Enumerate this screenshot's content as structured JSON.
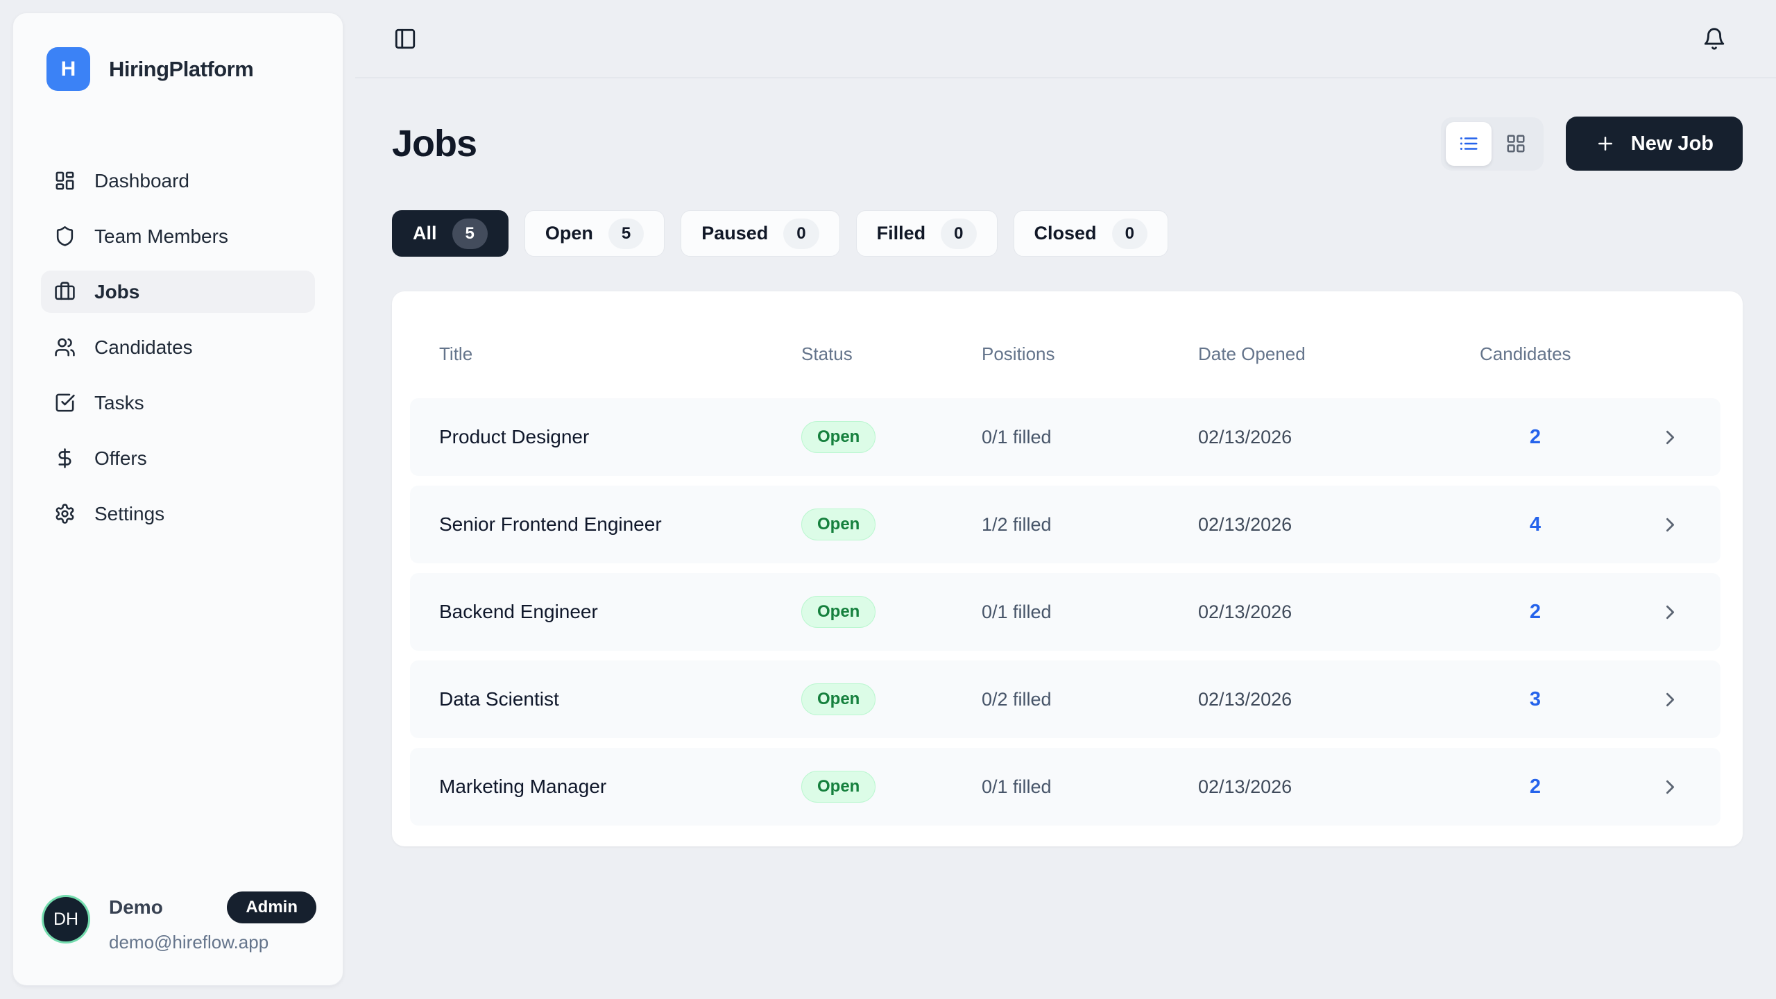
{
  "brand": {
    "initial": "H",
    "name": "HiringPlatform"
  },
  "sidebar": {
    "items": [
      {
        "label": "Dashboard",
        "icon": "dashboard-icon",
        "active": false
      },
      {
        "label": "Team Members",
        "icon": "shield-icon",
        "active": false
      },
      {
        "label": "Jobs",
        "icon": "briefcase-icon",
        "active": true
      },
      {
        "label": "Candidates",
        "icon": "users-icon",
        "active": false
      },
      {
        "label": "Tasks",
        "icon": "check-square-icon",
        "active": false
      },
      {
        "label": "Offers",
        "icon": "dollar-icon",
        "active": false
      },
      {
        "label": "Settings",
        "icon": "gear-icon",
        "active": false
      }
    ],
    "user": {
      "initials": "DH",
      "name": "Demo",
      "role_badge": "Admin",
      "email": "demo@hireflow.app"
    }
  },
  "page": {
    "title": "Jobs",
    "new_job_label": "New Job",
    "active_view": "list"
  },
  "filters": [
    {
      "label": "All",
      "count": "5",
      "active": true
    },
    {
      "label": "Open",
      "count": "5",
      "active": false
    },
    {
      "label": "Paused",
      "count": "0",
      "active": false
    },
    {
      "label": "Filled",
      "count": "0",
      "active": false
    },
    {
      "label": "Closed",
      "count": "0",
      "active": false
    }
  ],
  "table": {
    "columns": [
      "Title",
      "Status",
      "Positions",
      "Date Opened",
      "Candidates"
    ],
    "rows": [
      {
        "title": "Product Designer",
        "status": "Open",
        "positions": "0/1 filled",
        "date_opened": "02/13/2026",
        "candidates": "2"
      },
      {
        "title": "Senior Frontend Engineer",
        "status": "Open",
        "positions": "1/2 filled",
        "date_opened": "02/13/2026",
        "candidates": "4"
      },
      {
        "title": "Backend Engineer",
        "status": "Open",
        "positions": "0/1 filled",
        "date_opened": "02/13/2026",
        "candidates": "2"
      },
      {
        "title": "Data Scientist",
        "status": "Open",
        "positions": "0/2 filled",
        "date_opened": "02/13/2026",
        "candidates": "3"
      },
      {
        "title": "Marketing Manager",
        "status": "Open",
        "positions": "0/1 filled",
        "date_opened": "02/13/2026",
        "candidates": "2"
      }
    ]
  },
  "colors": {
    "accent_blue": "#2563eb",
    "logo_blue": "#3b82f6",
    "dark_navy": "#16202e",
    "status_open_bg": "#dcfce7",
    "status_open_border": "#bbf7d0",
    "status_open_text": "#15803d",
    "avatar_ring": "#74dcae",
    "page_bg": "#edeff3",
    "row_bg": "#f8fafc"
  }
}
